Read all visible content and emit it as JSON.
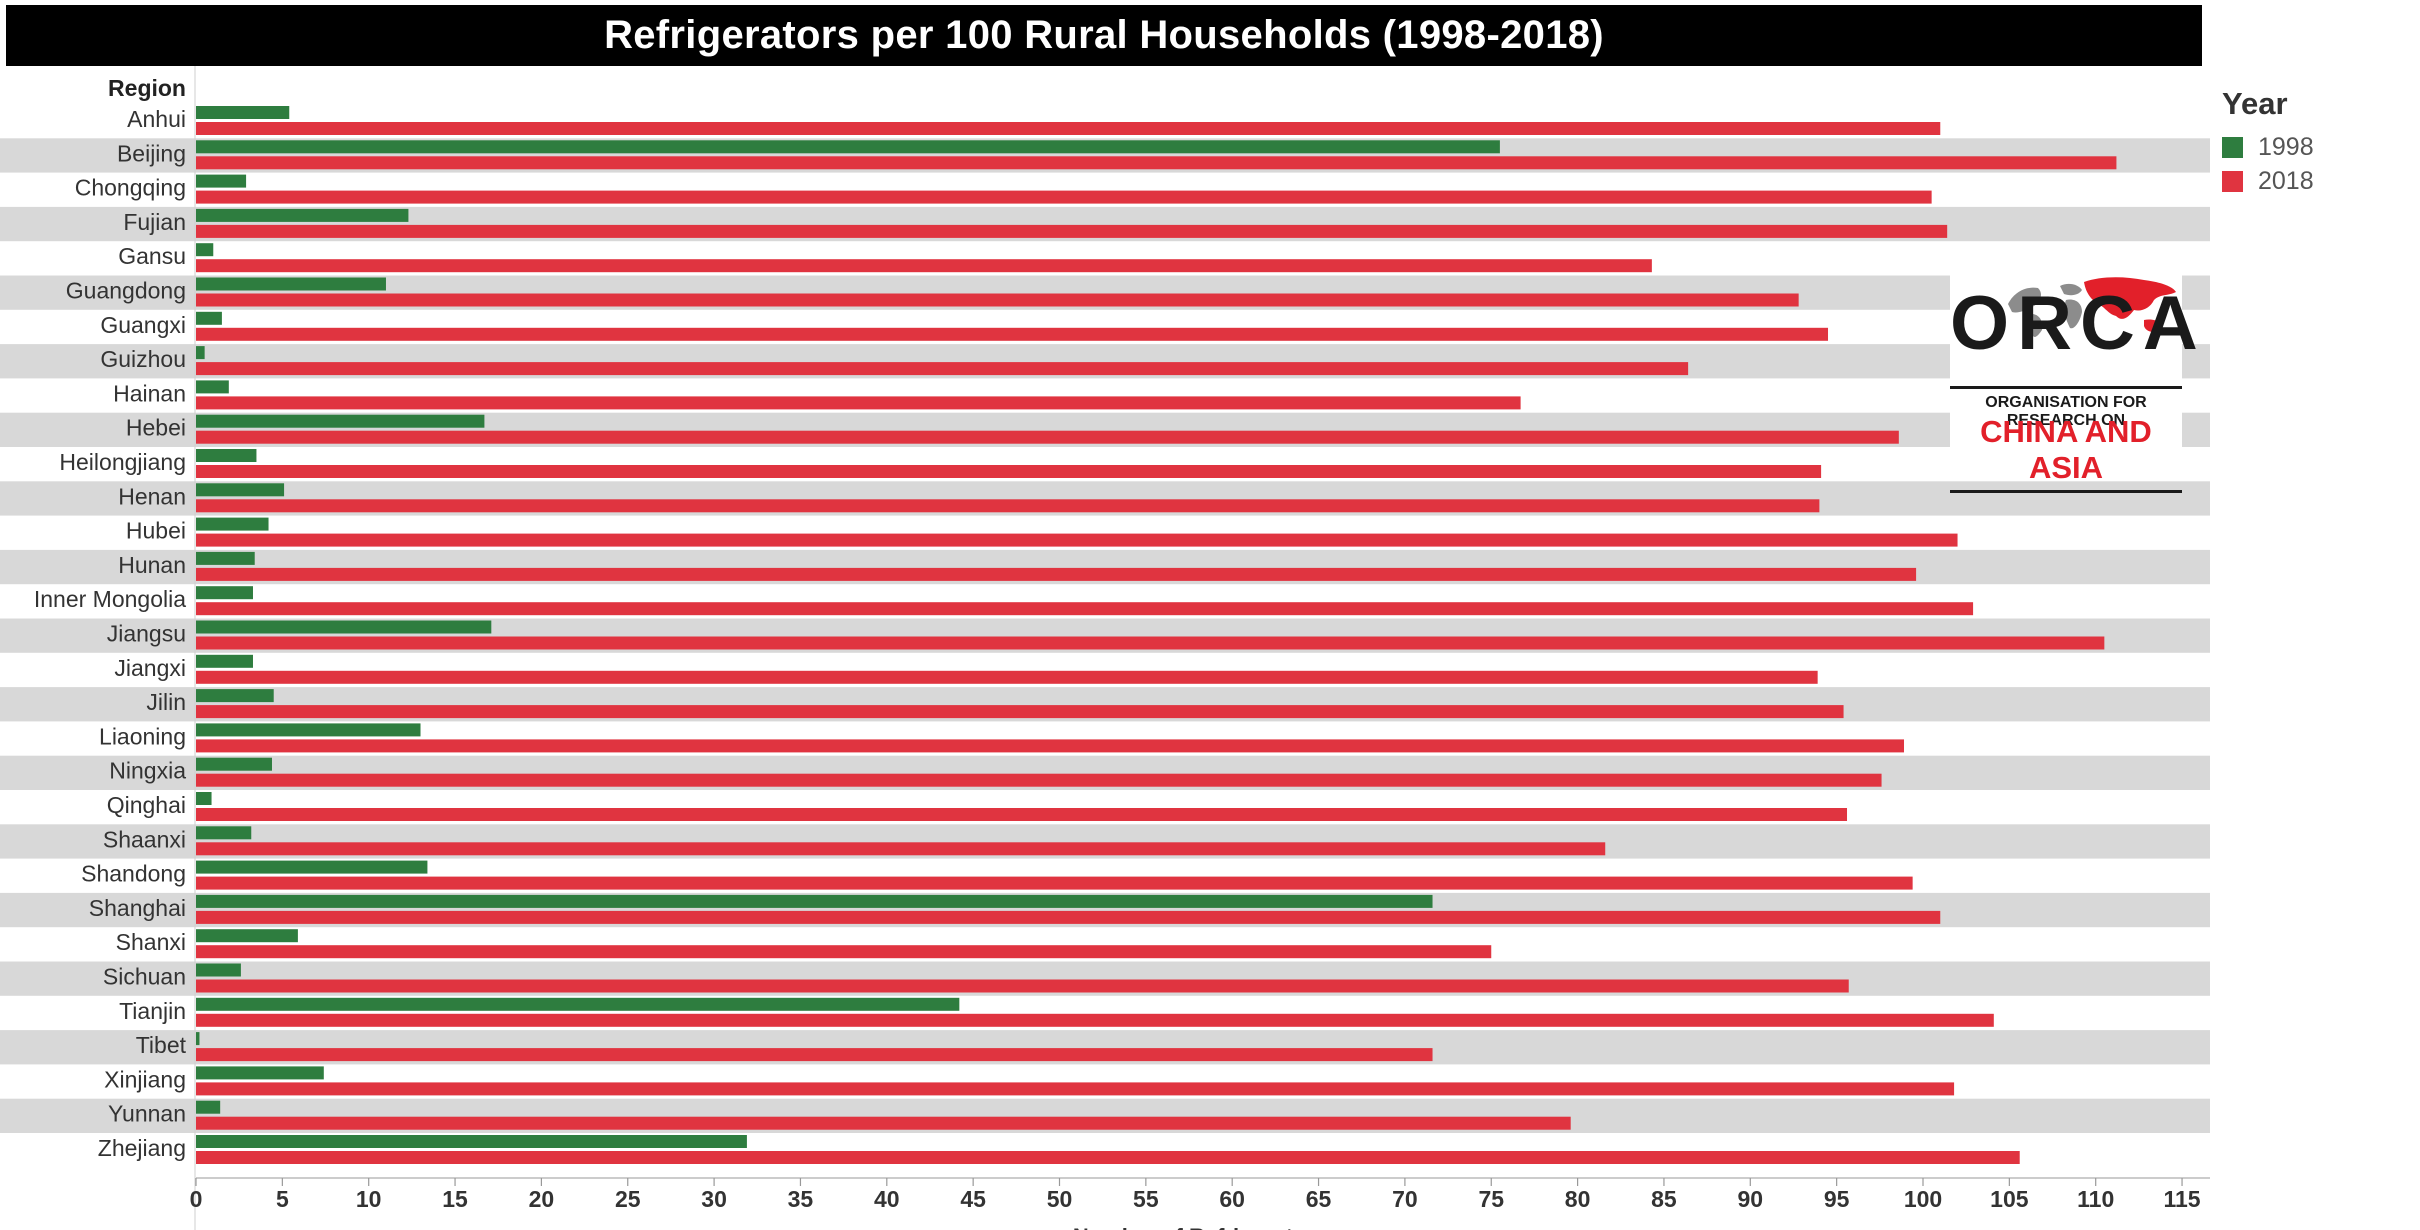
{
  "chart_data": {
    "type": "bar",
    "orientation": "horizontal",
    "title": "Refrigerators per 100 Rural Households (1998-2018)",
    "row_header": "Region",
    "xlabel": "Number of Refrigerators",
    "xlim": [
      0,
      116
    ],
    "xticks": [
      0,
      5,
      10,
      15,
      20,
      25,
      30,
      35,
      40,
      45,
      50,
      55,
      60,
      65,
      70,
      75,
      80,
      85,
      90,
      95,
      100,
      105,
      110,
      115
    ],
    "legend_title": "Year",
    "legend_position": "top-right",
    "row_banding": true,
    "categories": [
      "Anhui",
      "Beijing",
      "Chongqing",
      "Fujian",
      "Gansu",
      "Guangdong",
      "Guangxi",
      "Guizhou",
      "Hainan",
      "Hebei",
      "Heilongjiang",
      "Henan",
      "Hubei",
      "Hunan",
      "Inner Mongolia",
      "Jiangsu",
      "Jiangxi",
      "Jilin",
      "Liaoning",
      "Ningxia",
      "Qinghai",
      "Shaanxi",
      "Shandong",
      "Shanghai",
      "Shanxi",
      "Sichuan",
      "Tianjin",
      "Tibet",
      "Xinjiang",
      "Yunnan",
      "Zhejiang"
    ],
    "series": [
      {
        "name": "1998",
        "color": "#2e7d3f",
        "values": [
          5.4,
          75.5,
          2.9,
          12.3,
          1.0,
          11.0,
          1.5,
          0.5,
          1.9,
          16.7,
          3.5,
          5.1,
          4.2,
          3.4,
          3.3,
          17.1,
          3.3,
          4.5,
          13.0,
          4.4,
          0.9,
          3.2,
          13.4,
          71.6,
          5.9,
          2.6,
          44.2,
          0.2,
          7.4,
          1.4,
          31.9
        ]
      },
      {
        "name": "2018",
        "color": "#e03440",
        "values": [
          101.0,
          111.2,
          100.5,
          101.4,
          84.3,
          92.8,
          94.5,
          86.4,
          76.7,
          98.6,
          94.1,
          94.0,
          102.0,
          99.6,
          102.9,
          110.5,
          93.9,
          95.4,
          98.9,
          97.6,
          95.6,
          81.6,
          99.4,
          101.0,
          75.0,
          95.7,
          104.1,
          71.6,
          101.8,
          79.6,
          105.6
        ]
      }
    ]
  },
  "logo": {
    "word": "ORCA",
    "line1": "ORGANISATION FOR RESEARCH ON",
    "line2": "CHINA AND ASIA"
  }
}
